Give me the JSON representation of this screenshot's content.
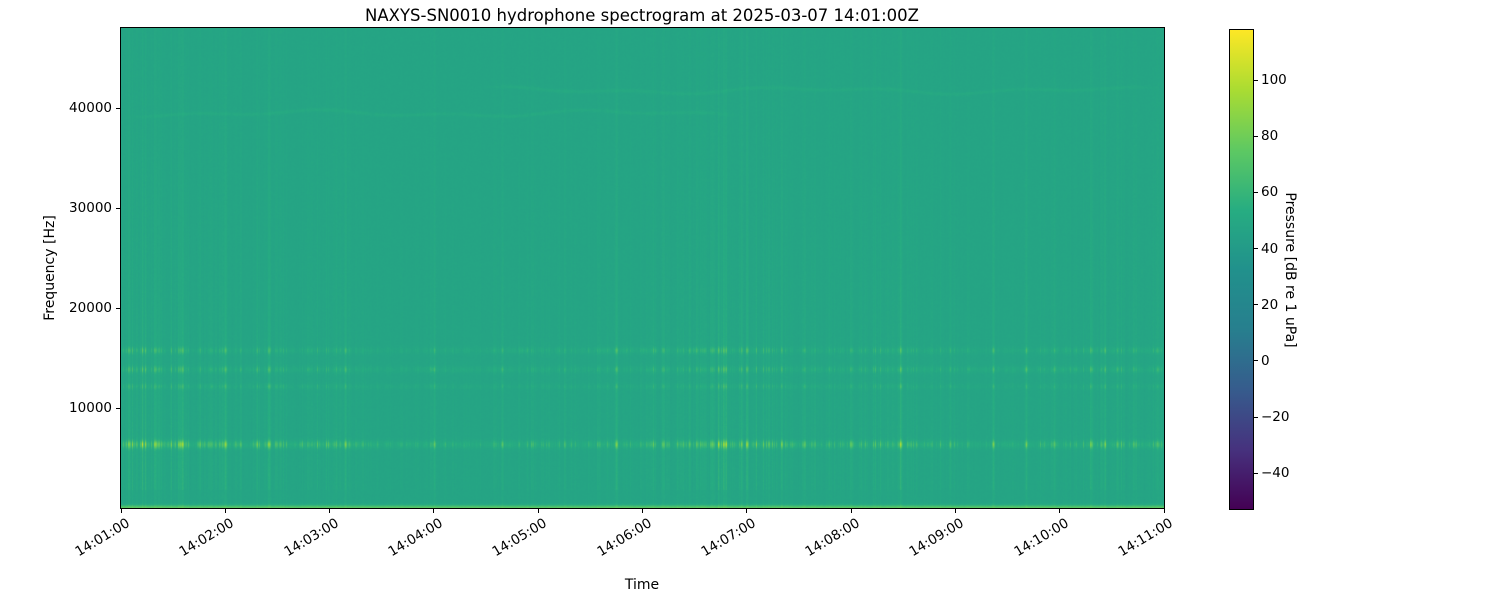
{
  "chart_data": {
    "type": "heatmap",
    "subtype": "spectrogram",
    "title": "NAXYS-SN0010 hydrophone spectrogram at 2025-03-07 14:01:00Z",
    "xlabel": "Time",
    "ylabel": "Frequency [Hz]",
    "x_tick_labels": [
      "14:01:00",
      "14:02:00",
      "14:03:00",
      "14:04:00",
      "14:05:00",
      "14:06:00",
      "14:07:00",
      "14:08:00",
      "14:09:00",
      "14:10:00",
      "14:11:00"
    ],
    "y_tick_values": [
      10000,
      20000,
      30000,
      40000
    ],
    "y_tick_labels": [
      "10000",
      "20000",
      "30000",
      "40000"
    ],
    "freq_range_hz": [
      0,
      48000
    ],
    "colormap": "viridis",
    "colormap_stops": [
      "#440154",
      "#46327e",
      "#365c8d",
      "#277f8e",
      "#21918c",
      "#27ad81",
      "#5ec962",
      "#aadc32",
      "#fde725"
    ],
    "color_limits_db": [
      -52.7,
      117.8
    ],
    "colorbar": {
      "label": "Pressure [dB re 1 uPa]",
      "tick_values": [
        100,
        80,
        60,
        40,
        20,
        0,
        -20,
        -40
      ],
      "tick_labels": [
        "100",
        "80",
        "60",
        "40",
        "20",
        "0",
        "−20",
        "−40"
      ]
    },
    "content": {
      "background_level_db": 47.5,
      "tonal_bands": [
        {
          "freq_hz": 6400,
          "sigma_hz": 260,
          "base_boost_db": 2.5,
          "mult": 3.2
        },
        {
          "freq_hz": 15800,
          "sigma_hz": 220,
          "base_boost_db": 1.2,
          "mult": 1.5
        },
        {
          "freq_hz": 13900,
          "sigma_hz": 220,
          "base_boost_db": 1.2,
          "mult": 1.5
        },
        {
          "freq_hz": 12200,
          "sigma_hz": 180,
          "base_boost_db": 0.8,
          "mult": 0.95
        }
      ],
      "surface_noise_band": {
        "freq_max_hz": 520,
        "boost_db": 9,
        "bottom_line_boost_db": 17
      },
      "narrowband_tones": [
        {
          "freq_hz": 39500,
          "x_extent": [
            0.0,
            0.6
          ],
          "boost_db": 3.6,
          "phase": 0.7
        },
        {
          "freq_hz": 41800,
          "x_extent": [
            0.34,
            1.0
          ],
          "boost_db": 3.6,
          "phase": 2.9
        }
      ],
      "broadband_striations": {
        "max_boost_db": 12.5,
        "typical_boost_db": 3
      },
      "strong_columns": [
        {
          "t": 0.035,
          "db": 5
        },
        {
          "t": 0.1,
          "db": 6
        },
        {
          "t": 0.142,
          "db": 5
        },
        {
          "t": 0.215,
          "db": 9
        },
        {
          "t": 0.3,
          "db": 7
        },
        {
          "t": 0.365,
          "db": 6
        },
        {
          "t": 0.475,
          "db": 10
        },
        {
          "t": 0.52,
          "db": 8
        },
        {
          "t": 0.6,
          "db": 7
        },
        {
          "t": 0.655,
          "db": 6
        },
        {
          "t": 0.7,
          "db": 5
        },
        {
          "t": 0.747,
          "db": 7
        },
        {
          "t": 0.795,
          "db": 6
        },
        {
          "t": 0.836,
          "db": 10
        },
        {
          "t": 0.868,
          "db": 8
        },
        {
          "t": 0.895,
          "db": 7
        },
        {
          "t": 0.955,
          "db": 6
        }
      ]
    }
  }
}
